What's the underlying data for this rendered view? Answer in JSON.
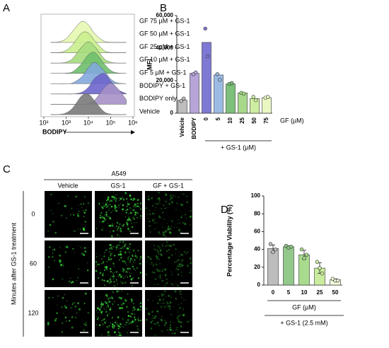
{
  "panels": [
    "A",
    "B",
    "C",
    "D"
  ],
  "chart_data": [
    {
      "type": "ridgeline",
      "xlabel": "BODIPY",
      "xscale": "log",
      "xlim": [
        100,
        1000000
      ],
      "xticks": [
        {
          "value": 100,
          "label": "10²"
        },
        {
          "value": 1000,
          "label": "10³"
        },
        {
          "value": 10000,
          "label": "10⁴"
        },
        {
          "value": 100000,
          "label": "10⁵"
        },
        {
          "value": 1000000,
          "label": "10⁶"
        }
      ],
      "x": [
        200,
        500,
        1000,
        2000,
        5000,
        10000,
        20000,
        50000,
        100000,
        200000,
        500000
      ],
      "series": [
        {
          "name": "GF 75 µM + GS-1",
          "color": "#e6f7b0",
          "values": [
            0,
            3,
            18,
            54,
            99,
            82,
            39,
            6,
            1,
            0,
            0
          ]
        },
        {
          "name": "GF 50 µM + GS-1",
          "color": "#c9ee8e",
          "values": [
            0,
            1,
            11,
            39,
            93,
            93,
            54,
            11,
            1,
            0,
            0
          ]
        },
        {
          "name": "GF 25 µM + GS-1",
          "color": "#a6dc7d",
          "values": [
            0,
            0,
            4,
            22,
            76,
            100,
            76,
            22,
            4,
            0,
            0
          ]
        },
        {
          "name": "GF 10 µM + GS-1",
          "color": "#6fbf6b",
          "values": [
            0,
            0,
            1,
            8,
            46,
            88,
            97,
            46,
            14,
            2,
            0
          ]
        },
        {
          "name": "GF 5 µM + GS-1",
          "color": "#82a9dc",
          "values": [
            0,
            0,
            0,
            4,
            32,
            76,
            100,
            61,
            22,
            4,
            0
          ]
        },
        {
          "name": "BODIPY + GS-1",
          "color": "#6d66cc",
          "values": [
            0,
            0,
            0,
            0,
            8,
            32,
            76,
            97,
            61,
            22,
            2
          ]
        },
        {
          "name": "BODIPY only",
          "color": "#a691c8",
          "values": [
            0,
            0,
            0,
            0,
            0,
            4,
            22,
            76,
            100,
            76,
            22
          ]
        },
        {
          "name": "Vehicle",
          "color": "#7a7a7a",
          "values": [
            0,
            1,
            8,
            32,
            88,
            97,
            61,
            14,
            2,
            0,
            0
          ]
        }
      ]
    },
    {
      "type": "bar",
      "ylabel": "MFI",
      "categories": [
        "Vehicle",
        "BODIPY",
        "0",
        "5",
        "10",
        "25",
        "50",
        "75"
      ],
      "values": [
        8000,
        24500,
        43500,
        23500,
        18000,
        12500,
        9000,
        9500
      ],
      "points": [
        [
          7500,
          9000
        ],
        [
          24000,
          25000
        ],
        [
          52000,
          35000
        ],
        [
          24000,
          20500
        ],
        [
          18000,
          18500
        ],
        [
          12500,
          12000
        ],
        [
          10000,
          8000
        ],
        [
          9500,
          10000
        ]
      ],
      "colors": [
        "#bdbdbd",
        "#b7a4d8",
        "#7e79d4",
        "#9bbbe4",
        "#7cc07a",
        "#a8d98a",
        "#cdeea0",
        "#e9f7c3"
      ],
      "ylim": [
        0,
        60000
      ],
      "yticks": [
        0,
        {
          "value": 20000,
          "label": "20,000"
        },
        {
          "value": 40000,
          "label": "40,000"
        },
        {
          "value": 60000,
          "label": "60,000"
        }
      ],
      "annotations": [
        "GF (µM)",
        "+ GS-1 (µM)"
      ]
    },
    {
      "type": "bar",
      "ylabel": "Percentage Viability (%)",
      "categories": [
        "0",
        "5",
        "10",
        "25",
        "50"
      ],
      "values": [
        41,
        43,
        34,
        19,
        6
      ],
      "errors": [
        4,
        1,
        5,
        6,
        1
      ],
      "points": [
        [
          46,
          37,
          40
        ],
        [
          44,
          42,
          43
        ],
        [
          40,
          30,
          34
        ],
        [
          26,
          19,
          13
        ],
        [
          7,
          5,
          5
        ]
      ],
      "colors": [
        "#bdbdbd",
        "#92c98a",
        "#a8db8e",
        "#caec9f",
        "#eef8d6"
      ],
      "ylim": [
        0,
        100
      ],
      "yticks": [
        0,
        20,
        40,
        60,
        80,
        100
      ],
      "annotations": [
        "GF (µM)",
        "+ GS-1 (2.5 mM)"
      ]
    }
  ],
  "images": {
    "title": "A549",
    "columns": [
      "Vehicle",
      "GS-1",
      "GF + GS-1"
    ],
    "rows": [
      "0",
      "60",
      "120"
    ],
    "row_label": "Minutes after GS-1 treatment"
  }
}
